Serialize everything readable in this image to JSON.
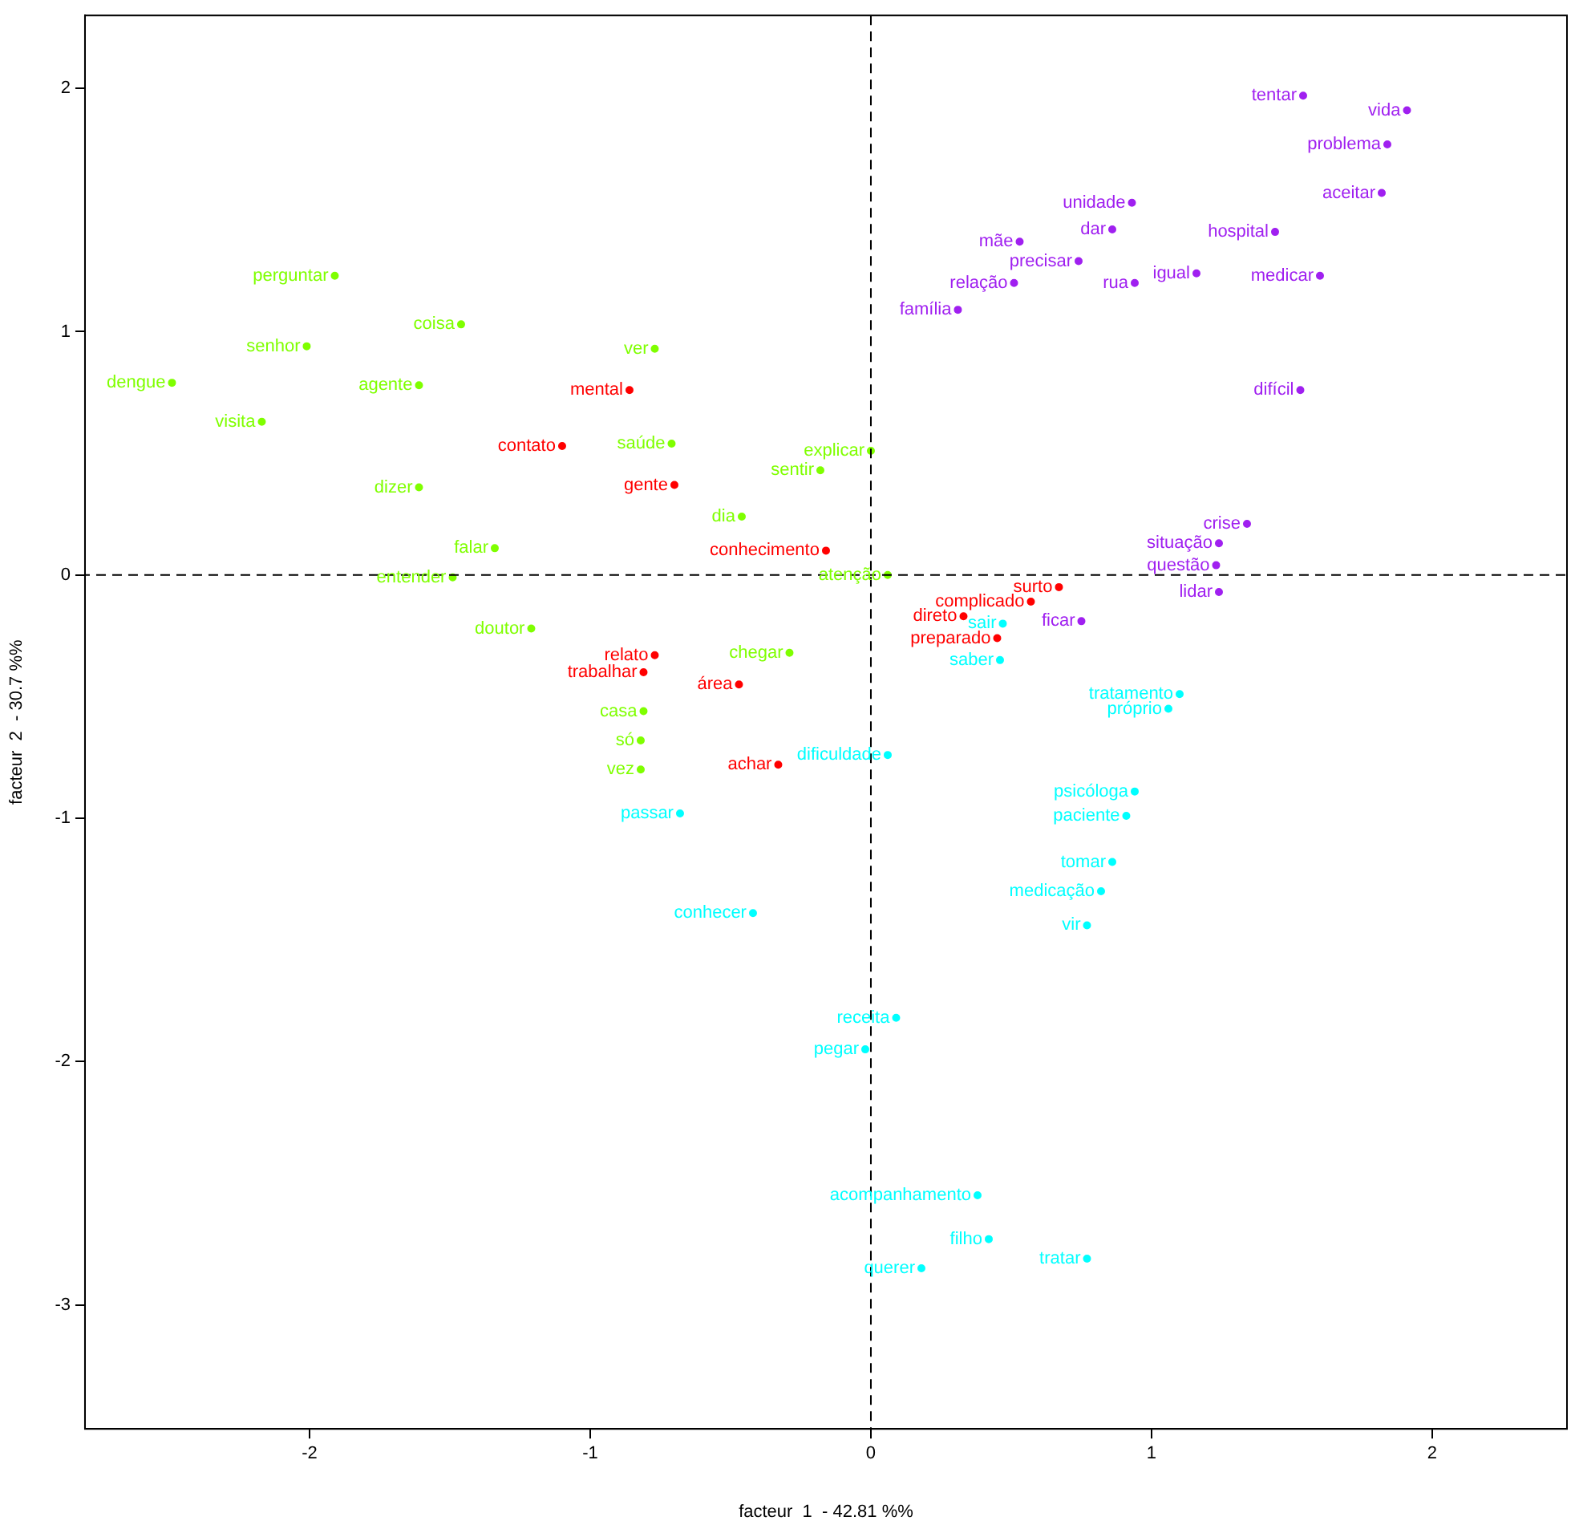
{
  "chart_data": {
    "type": "scatter",
    "xlabel": "facteur  1  - 42.81 %%",
    "ylabel": "facteur  2  - 30.7 %%",
    "xlim": [
      -2.8,
      2.48
    ],
    "ylim": [
      -3.51,
      2.3
    ],
    "xticks": [
      -2,
      -1,
      0,
      1,
      2
    ],
    "yticks": [
      -3,
      -2,
      -1,
      0,
      1,
      2
    ],
    "marker": "circle",
    "ref_lines": [
      {
        "axis": "x",
        "value": 0,
        "line_style": "dashed",
        "color": "#000000"
      },
      {
        "axis": "y",
        "value": 0,
        "line_style": "dashed",
        "color": "#000000"
      }
    ],
    "series": [
      {
        "color": "#7fff00",
        "x": [
          -1.91,
          -1.46,
          -2.01,
          -2.49,
          -2.17,
          -1.61,
          -0.77,
          -0.71,
          -1.61,
          -1.34,
          -1.49,
          -1.21,
          -0.46,
          -0.18,
          0.0,
          0.06,
          -0.29,
          -0.81,
          -0.82,
          -0.82
        ],
        "values": [
          1.23,
          1.03,
          0.94,
          0.79,
          0.63,
          0.78,
          0.93,
          0.54,
          0.36,
          0.11,
          -0.01,
          -0.22,
          0.24,
          0.43,
          0.51,
          0.0,
          -0.32,
          -0.56,
          -0.68,
          -0.8
        ],
        "value_labels": [
          "perguntar",
          "coisa",
          "senhor",
          "dengue",
          "visita",
          "agente",
          "ver",
          "saúde",
          "dizer",
          "falar",
          "entender",
          "doutor",
          "dia",
          "sentir",
          "explicar",
          "atenção",
          "chegar",
          "casa",
          "só",
          "vez"
        ]
      },
      {
        "color": "#ff0000",
        "x": [
          -0.86,
          -1.1,
          -0.7,
          -0.16,
          -0.47,
          -0.77,
          -0.81,
          -0.33,
          0.67,
          0.57,
          0.33,
          0.45
        ],
        "values": [
          0.76,
          0.53,
          0.37,
          0.1,
          -0.45,
          -0.33,
          -0.4,
          -0.78,
          -0.05,
          -0.11,
          -0.17,
          -0.26
        ],
        "value_labels": [
          "mental",
          "contato",
          "gente",
          "conhecimento",
          "área",
          "relato",
          "trabalhar",
          "achar",
          "surto",
          "complicado",
          "direto",
          "preparado"
        ]
      },
      {
        "color": "#00ffff",
        "x": [
          0.47,
          0.46,
          1.1,
          1.06,
          0.06,
          -0.68,
          0.94,
          0.91,
          0.86,
          0.82,
          0.77,
          -0.42,
          0.09,
          -0.02,
          0.38,
          0.42,
          0.18,
          0.77
        ],
        "values": [
          -0.2,
          -0.35,
          -0.49,
          -0.55,
          -0.74,
          -0.98,
          -0.89,
          -0.99,
          -1.18,
          -1.3,
          -1.44,
          -1.39,
          -1.82,
          -1.95,
          -2.55,
          -2.73,
          -2.85,
          -2.81
        ],
        "value_labels": [
          "sair",
          "saber",
          "tratamento",
          "próprio",
          "dificuldade",
          "passar",
          "psicóloga",
          "paciente",
          "tomar",
          "medicação",
          "vir",
          "conhecer",
          "receita",
          "pegar",
          "acompanhamento",
          "filho",
          "querer",
          "tratar"
        ]
      },
      {
        "color": "#a020f0",
        "x": [
          1.54,
          1.91,
          1.84,
          1.82,
          1.44,
          0.93,
          0.86,
          0.53,
          0.74,
          0.51,
          0.94,
          1.16,
          1.6,
          0.31,
          1.53,
          1.34,
          1.24,
          1.23,
          1.24,
          0.75
        ],
        "values": [
          1.97,
          1.91,
          1.77,
          1.57,
          1.41,
          1.53,
          1.42,
          1.37,
          1.29,
          1.2,
          1.2,
          1.24,
          1.23,
          1.09,
          0.76,
          0.21,
          0.13,
          0.04,
          -0.07,
          -0.19
        ],
        "value_labels": [
          "tentar",
          "vida",
          "problema",
          "aceitar",
          "hospital",
          "unidade",
          "dar",
          "mãe",
          "precisar",
          "relação",
          "rua",
          "igual",
          "medicar",
          "família",
          "difícil",
          "crise",
          "situação",
          "questão",
          "lidar",
          "ficar"
        ]
      }
    ]
  }
}
